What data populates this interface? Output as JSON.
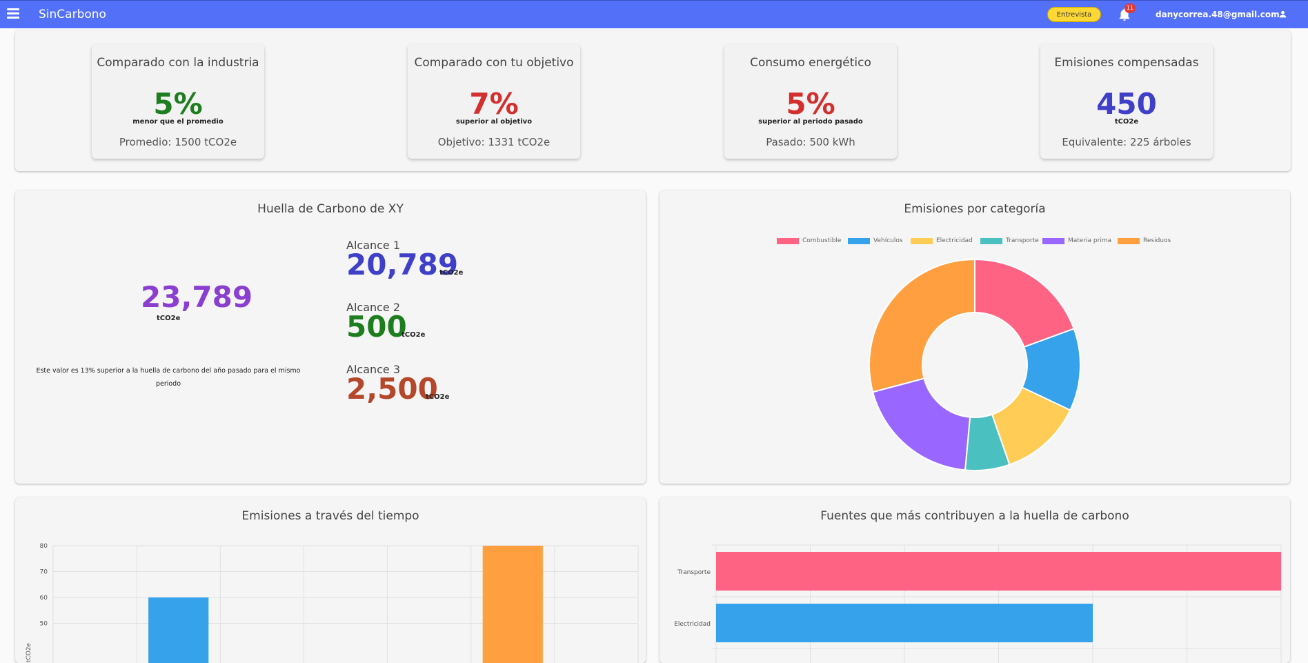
{
  "appbar": {
    "title": "SinCarbono",
    "chip_label": "Entrevista",
    "notification_count": "11",
    "user_email": "danycorrea.48@gmail.com",
    "color": "#5370f8"
  },
  "kpis": [
    {
      "title": "Comparado con la industria",
      "value": "5%",
      "subtitle": "menor que el promedio",
      "footer": "Promedio: 1500 tCO2e",
      "color": "#1e7d1e"
    },
    {
      "title": "Comparado con tu objetivo",
      "value": "7%",
      "subtitle": "superior al objetivo",
      "footer": "Objetivo: 1331 tCO2e",
      "color": "#d32f2f"
    },
    {
      "title": "Consumo energético",
      "value": "5%",
      "subtitle": "superior al periodo pasado",
      "footer": "Pasado: 500 kWh",
      "color": "#d32f2f"
    },
    {
      "title": "Emisiones compensadas",
      "value": "450",
      "subtitle": "tCO2e",
      "footer": "Equivalente: 225 árboles",
      "color": "#3f3fc8"
    }
  ],
  "footprint": {
    "title": "Huella de Carbono de XY",
    "total": "23,789",
    "total_unit": "tCO2e",
    "note": "Este valor es 13% superior a la huella de carbono del año pasado para el mismo periodo",
    "scopes": [
      {
        "label": "Alcance 1",
        "value": "20,789",
        "unit": "tCO2e",
        "color": "#3f3fc8"
      },
      {
        "label": "Alcance 2",
        "value": "500",
        "unit": "tCO2e",
        "color": "#1e7d1e"
      },
      {
        "label": "Alcance 3",
        "value": "2,500",
        "unit": "tCO2e",
        "color": "#b5472a"
      }
    ]
  },
  "category_card": {
    "title": "Emisiones por categoría"
  },
  "time_card": {
    "title": "Emisiones a través del tiempo"
  },
  "sources_card": {
    "title": "Fuentes que más contribuyen a la huella de carbono"
  },
  "chart_data": [
    {
      "type": "pie",
      "title": "Emisiones por categoría",
      "categories": [
        "Combustible",
        "Vehículos",
        "Electricidad",
        "Transporte",
        "Materia prima",
        "Residuos"
      ],
      "values": [
        20,
        13,
        13,
        7,
        20,
        30
      ],
      "colors": [
        "#ff6384",
        "#36a2eb",
        "#ffcd56",
        "#4bc0c0",
        "#9966ff",
        "#ff9f40"
      ],
      "legend": "top"
    },
    {
      "type": "bar",
      "title": "Emisiones a través del tiempo",
      "ylabel": "tCO2e",
      "ylim": [
        40,
        80
      ],
      "yticks": [
        "80",
        "70",
        "60",
        "50"
      ],
      "categories": [
        "",
        "",
        "",
        "",
        "",
        "",
        ""
      ],
      "values": [
        null,
        60,
        null,
        null,
        null,
        80,
        null
      ],
      "colors": [
        "#36a2eb",
        "#36a2eb",
        "#36a2eb",
        "#36a2eb",
        "#36a2eb",
        "#ff9f40",
        "#36a2eb"
      ],
      "grid": true
    },
    {
      "type": "bar",
      "orientation": "horizontal",
      "title": "Fuentes que más contribuyen a la huella de carbono",
      "categories": [
        "Transporte",
        "Electricidad"
      ],
      "values": [
        6,
        4
      ],
      "colors": [
        "#ff6384",
        "#36a2eb"
      ],
      "xlim": [
        0,
        6
      ],
      "grid": true
    }
  ]
}
